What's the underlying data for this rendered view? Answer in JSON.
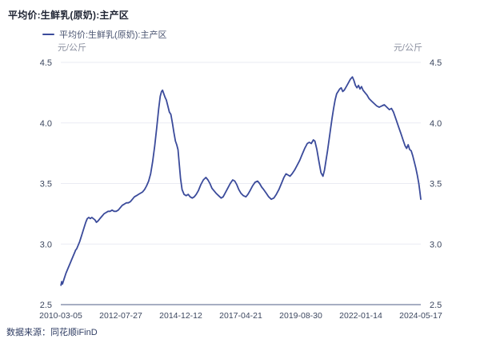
{
  "header": {
    "title": "平均价:生鲜乳(原奶):主产区"
  },
  "legend": {
    "series_label": "平均价:生鲜乳(原奶):主产区"
  },
  "axes": {
    "left_unit": "元/公斤",
    "right_unit": "元/公斤"
  },
  "footer": {
    "source": "数据来源：同花顺iFinD"
  },
  "colors": {
    "line": "#3b4b9b",
    "gridline": "#eaebf3",
    "axis_line": "#a7aec2",
    "tick_label": "#3c475f",
    "title_text": "#1f2433",
    "legend_text": "#4b5571",
    "unit_text": "#8b90a0",
    "source_text": "#2f3d63"
  },
  "chart_data": {
    "type": "line",
    "title": "平均价:生鲜乳(原奶):主产区",
    "ylabel": "元/公斤",
    "ylim": [
      2.5,
      4.5
    ],
    "y_ticks": [
      2.5,
      3.0,
      3.5,
      4.0,
      4.5
    ],
    "grid": "horizontal-only",
    "legend_position": "top-left",
    "x_tick_labels": [
      "2010-03-05",
      "2012-07-27",
      "2014-12-12",
      "2017-04-21",
      "2019-08-30",
      "2022-01-14",
      "2024-05-17"
    ],
    "x_domain_years": [
      2010.175,
      2024.38
    ],
    "series": [
      {
        "name": "平均价:生鲜乳(原奶):主产区",
        "points": [
          [
            2010.18,
            2.66
          ],
          [
            2010.21,
            2.69
          ],
          [
            2010.24,
            2.67
          ],
          [
            2010.3,
            2.71
          ],
          [
            2010.38,
            2.76
          ],
          [
            2010.46,
            2.8
          ],
          [
            2010.54,
            2.84
          ],
          [
            2010.6,
            2.87
          ],
          [
            2010.66,
            2.9
          ],
          [
            2010.72,
            2.93
          ],
          [
            2010.76,
            2.95
          ],
          [
            2010.8,
            2.96
          ],
          [
            2010.86,
            2.99
          ],
          [
            2010.92,
            3.02
          ],
          [
            2010.98,
            3.06
          ],
          [
            2011.04,
            3.1
          ],
          [
            2011.1,
            3.14
          ],
          [
            2011.16,
            3.18
          ],
          [
            2011.22,
            3.21
          ],
          [
            2011.28,
            3.22
          ],
          [
            2011.34,
            3.21
          ],
          [
            2011.4,
            3.22
          ],
          [
            2011.46,
            3.21
          ],
          [
            2011.52,
            3.2
          ],
          [
            2011.58,
            3.18
          ],
          [
            2011.64,
            3.19
          ],
          [
            2011.72,
            3.21
          ],
          [
            2011.8,
            3.23
          ],
          [
            2011.88,
            3.25
          ],
          [
            2011.96,
            3.26
          ],
          [
            2012.04,
            3.27
          ],
          [
            2012.12,
            3.27
          ],
          [
            2012.2,
            3.28
          ],
          [
            2012.28,
            3.27
          ],
          [
            2012.36,
            3.27
          ],
          [
            2012.44,
            3.28
          ],
          [
            2012.52,
            3.3
          ],
          [
            2012.6,
            3.32
          ],
          [
            2012.68,
            3.33
          ],
          [
            2012.76,
            3.34
          ],
          [
            2012.84,
            3.34
          ],
          [
            2012.92,
            3.35
          ],
          [
            2013.0,
            3.37
          ],
          [
            2013.08,
            3.39
          ],
          [
            2013.16,
            3.4
          ],
          [
            2013.24,
            3.41
          ],
          [
            2013.32,
            3.42
          ],
          [
            2013.4,
            3.43
          ],
          [
            2013.48,
            3.45
          ],
          [
            2013.56,
            3.48
          ],
          [
            2013.64,
            3.52
          ],
          [
            2013.72,
            3.58
          ],
          [
            2013.8,
            3.68
          ],
          [
            2013.88,
            3.81
          ],
          [
            2013.96,
            3.96
          ],
          [
            2014.04,
            4.12
          ],
          [
            2014.1,
            4.22
          ],
          [
            2014.15,
            4.26
          ],
          [
            2014.19,
            4.27
          ],
          [
            2014.24,
            4.24
          ],
          [
            2014.29,
            4.21
          ],
          [
            2014.34,
            4.19
          ],
          [
            2014.4,
            4.14
          ],
          [
            2014.46,
            4.09
          ],
          [
            2014.52,
            4.07
          ],
          [
            2014.58,
            4.0
          ],
          [
            2014.64,
            3.92
          ],
          [
            2014.7,
            3.85
          ],
          [
            2014.75,
            3.82
          ],
          [
            2014.8,
            3.78
          ],
          [
            2014.85,
            3.66
          ],
          [
            2014.9,
            3.54
          ],
          [
            2014.96,
            3.45
          ],
          [
            2015.04,
            3.41
          ],
          [
            2015.12,
            3.4
          ],
          [
            2015.2,
            3.41
          ],
          [
            2015.28,
            3.39
          ],
          [
            2015.36,
            3.38
          ],
          [
            2015.44,
            3.39
          ],
          [
            2015.52,
            3.41
          ],
          [
            2015.6,
            3.44
          ],
          [
            2015.7,
            3.49
          ],
          [
            2015.8,
            3.53
          ],
          [
            2015.9,
            3.55
          ],
          [
            2015.98,
            3.53
          ],
          [
            2016.06,
            3.5
          ],
          [
            2016.14,
            3.46
          ],
          [
            2016.22,
            3.44
          ],
          [
            2016.3,
            3.42
          ],
          [
            2016.4,
            3.4
          ],
          [
            2016.5,
            3.38
          ],
          [
            2016.58,
            3.39
          ],
          [
            2016.66,
            3.42
          ],
          [
            2016.76,
            3.46
          ],
          [
            2016.86,
            3.5
          ],
          [
            2016.96,
            3.53
          ],
          [
            2017.04,
            3.52
          ],
          [
            2017.12,
            3.49
          ],
          [
            2017.2,
            3.45
          ],
          [
            2017.28,
            3.42
          ],
          [
            2017.38,
            3.4
          ],
          [
            2017.48,
            3.39
          ],
          [
            2017.56,
            3.41
          ],
          [
            2017.64,
            3.44
          ],
          [
            2017.74,
            3.48
          ],
          [
            2017.84,
            3.51
          ],
          [
            2017.94,
            3.52
          ],
          [
            2018.02,
            3.5
          ],
          [
            2018.1,
            3.47
          ],
          [
            2018.18,
            3.45
          ],
          [
            2018.28,
            3.42
          ],
          [
            2018.38,
            3.39
          ],
          [
            2018.48,
            3.37
          ],
          [
            2018.58,
            3.38
          ],
          [
            2018.68,
            3.41
          ],
          [
            2018.78,
            3.45
          ],
          [
            2018.88,
            3.5
          ],
          [
            2018.98,
            3.55
          ],
          [
            2019.06,
            3.58
          ],
          [
            2019.14,
            3.57
          ],
          [
            2019.22,
            3.56
          ],
          [
            2019.3,
            3.58
          ],
          [
            2019.4,
            3.61
          ],
          [
            2019.5,
            3.65
          ],
          [
            2019.6,
            3.69
          ],
          [
            2019.7,
            3.74
          ],
          [
            2019.8,
            3.79
          ],
          [
            2019.9,
            3.83
          ],
          [
            2019.98,
            3.84
          ],
          [
            2020.06,
            3.83
          ],
          [
            2020.14,
            3.86
          ],
          [
            2020.2,
            3.85
          ],
          [
            2020.28,
            3.78
          ],
          [
            2020.36,
            3.68
          ],
          [
            2020.44,
            3.59
          ],
          [
            2020.52,
            3.56
          ],
          [
            2020.58,
            3.61
          ],
          [
            2020.64,
            3.69
          ],
          [
            2020.7,
            3.77
          ],
          [
            2020.76,
            3.86
          ],
          [
            2020.82,
            3.95
          ],
          [
            2020.88,
            4.04
          ],
          [
            2020.94,
            4.12
          ],
          [
            2021.0,
            4.19
          ],
          [
            2021.06,
            4.24
          ],
          [
            2021.12,
            4.26
          ],
          [
            2021.18,
            4.28
          ],
          [
            2021.24,
            4.29
          ],
          [
            2021.3,
            4.26
          ],
          [
            2021.36,
            4.27
          ],
          [
            2021.44,
            4.3
          ],
          [
            2021.52,
            4.33
          ],
          [
            2021.6,
            4.36
          ],
          [
            2021.68,
            4.38
          ],
          [
            2021.74,
            4.35
          ],
          [
            2021.8,
            4.31
          ],
          [
            2021.86,
            4.29
          ],
          [
            2021.92,
            4.31
          ],
          [
            2021.98,
            4.28
          ],
          [
            2022.04,
            4.3
          ],
          [
            2022.1,
            4.27
          ],
          [
            2022.18,
            4.25
          ],
          [
            2022.26,
            4.23
          ],
          [
            2022.34,
            4.2
          ],
          [
            2022.44,
            4.18
          ],
          [
            2022.54,
            4.16
          ],
          [
            2022.64,
            4.14
          ],
          [
            2022.74,
            4.13
          ],
          [
            2022.84,
            4.14
          ],
          [
            2022.94,
            4.15
          ],
          [
            2023.04,
            4.13
          ],
          [
            2023.14,
            4.11
          ],
          [
            2023.22,
            4.12
          ],
          [
            2023.3,
            4.09
          ],
          [
            2023.4,
            4.03
          ],
          [
            2023.5,
            3.97
          ],
          [
            2023.6,
            3.91
          ],
          [
            2023.68,
            3.86
          ],
          [
            2023.76,
            3.81
          ],
          [
            2023.82,
            3.79
          ],
          [
            2023.88,
            3.82
          ],
          [
            2023.94,
            3.78
          ],
          [
            2024.0,
            3.77
          ],
          [
            2024.06,
            3.73
          ],
          [
            2024.12,
            3.68
          ],
          [
            2024.18,
            3.63
          ],
          [
            2024.24,
            3.57
          ],
          [
            2024.3,
            3.5
          ],
          [
            2024.34,
            3.44
          ],
          [
            2024.38,
            3.37
          ]
        ]
      }
    ]
  }
}
